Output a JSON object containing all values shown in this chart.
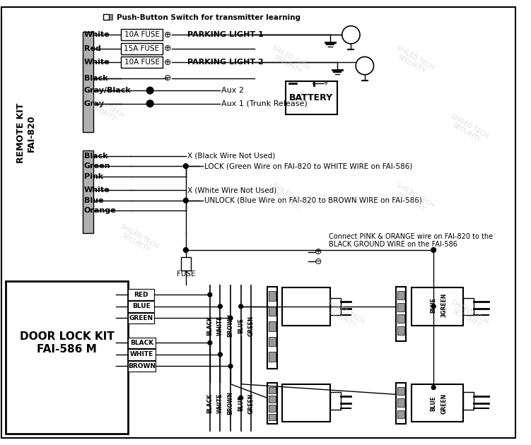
{
  "bg_color": "#ffffff",
  "remote_kit_label": "REMOTE KIT\nFAI-820",
  "door_lock_label": "DOOR LOCK KIT\nFAI-586 M",
  "push_button_text": "Push-Button Switch for transmitter learning",
  "parking_light1": "PARKING LIGHT 1",
  "parking_light2": "PARKING LIGHT 2",
  "battery_text": "BATTERY",
  "fuse_labels": [
    "10A FUSE",
    "15A FUSE",
    "10A FUSE"
  ],
  "wire_labels_top": [
    "White",
    "Red",
    "White",
    "Black",
    "Gray/Black",
    "Gray"
  ],
  "aux_labels": [
    "Aux 2",
    "Aux 1 (Trunk Release)"
  ],
  "wire_labels_bottom": [
    "Black",
    "Green",
    "Pink",
    "White",
    "Blue",
    "Orange"
  ],
  "lock_note": "LOCK (Green Wire on FAI-820 to WHITE WIRE on FAI-586)",
  "unlock_note": "UNLOCK (Blue Wire on FAI-820 to BROWN WIRE on FAI-586)",
  "black_not_used": "X (Black Wire Not Used)",
  "white_not_used": "X (White Wire Not Used)",
  "pink_orange_note1": "Connect PINK & ORANGE wire on FAI-820 to the",
  "pink_orange_note2": "BLACK GROUND WIRE on the FAI-586",
  "fuse_label": "FUSE",
  "door_wires_upper": [
    "RED",
    "BLUE",
    "GREEN"
  ],
  "door_wires_lower": [
    "BLACK",
    "WHITE",
    "BROWN"
  ],
  "harness_wires": [
    "BLACK",
    "WHITE",
    "BROWN",
    "BLUE",
    "GREEN"
  ],
  "watermark": "SHILED TECH\nSECURITY"
}
